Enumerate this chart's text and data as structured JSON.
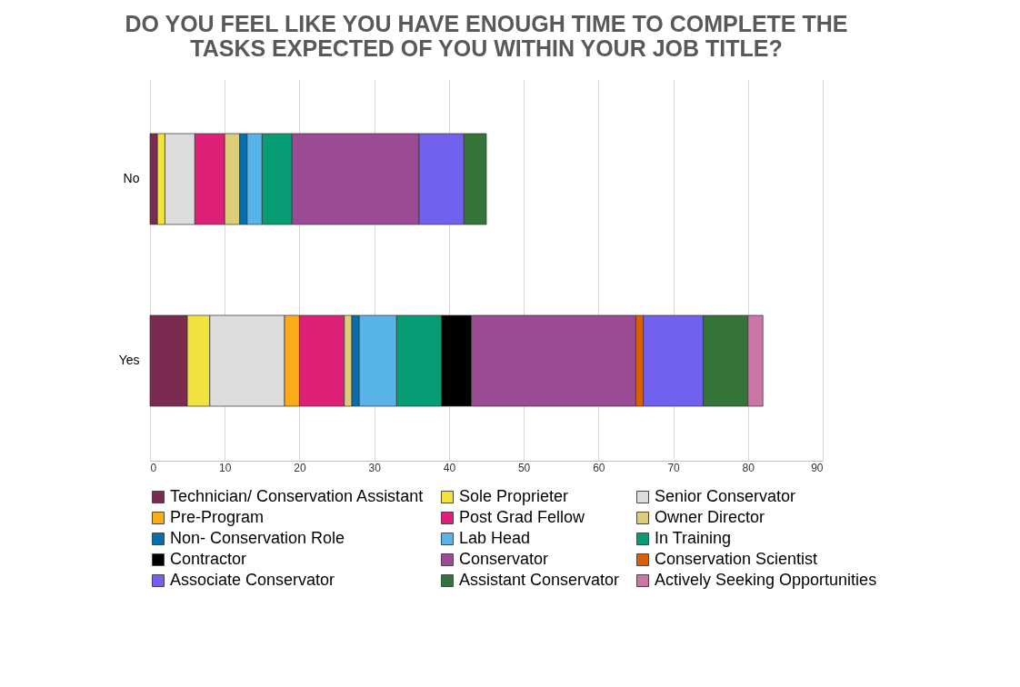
{
  "chart_data": {
    "type": "bar",
    "orientation": "horizontal",
    "stacked": true,
    "title": "DO YOU FEEL LIKE YOU HAVE ENOUGH TIME TO COMPLETE THE\nTASKS EXPECTED OF YOU WITHIN YOUR JOB TITLE?",
    "categories": [
      "No",
      "Yes"
    ],
    "xlim": [
      0,
      90
    ],
    "xticks": [
      0,
      10,
      20,
      30,
      40,
      50,
      60,
      70,
      80,
      90
    ],
    "grid": "x",
    "legend": "bottom",
    "series": [
      {
        "name": "Technician/ Conservation Assistant",
        "color": "#7b2a50",
        "values": [
          1,
          5
        ]
      },
      {
        "name": "Sole Proprieter",
        "color": "#f2e23e",
        "values": [
          1,
          3
        ]
      },
      {
        "name": "Senior Conservator",
        "color": "#dcdcdc",
        "values": [
          4,
          10
        ]
      },
      {
        "name": "Pre-Program",
        "color": "#fbab18",
        "values": [
          0,
          2
        ]
      },
      {
        "name": "Post Grad Fellow",
        "color": "#df2078",
        "values": [
          4,
          6
        ]
      },
      {
        "name": "Owner Director",
        "color": "#dccd7b",
        "values": [
          2,
          1
        ]
      },
      {
        "name": "Non- Conservation Role",
        "color": "#076ead",
        "values": [
          1,
          1
        ]
      },
      {
        "name": "Lab Head",
        "color": "#58b3e8",
        "values": [
          2,
          5
        ]
      },
      {
        "name": "In Training",
        "color": "#069c74",
        "values": [
          4,
          6
        ]
      },
      {
        "name": "Contractor",
        "color": "#000000",
        "values": [
          0,
          4
        ]
      },
      {
        "name": "Conservator",
        "color": "#9b4a94",
        "values": [
          17,
          22
        ]
      },
      {
        "name": "Conservation Scientist",
        "color": "#d75f06",
        "values": [
          0,
          1
        ]
      },
      {
        "name": "Associate Conservator",
        "color": "#7260ef",
        "values": [
          6,
          8
        ]
      },
      {
        "name": "Assistant Conservator",
        "color": "#347439",
        "values": [
          3,
          6
        ]
      },
      {
        "name": "Actively Seeking Opportunities",
        "color": "#cb76a6",
        "values": [
          0,
          2
        ]
      }
    ]
  }
}
